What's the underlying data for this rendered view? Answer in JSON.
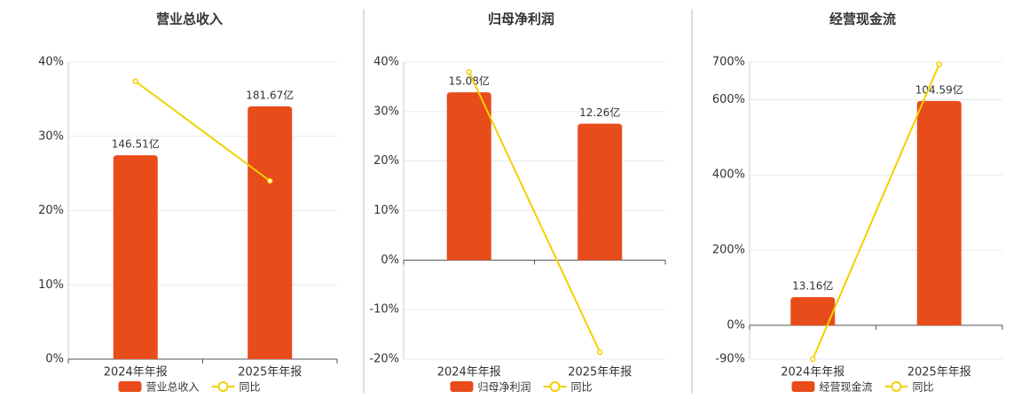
{
  "chart_data": [
    {
      "type": "combo",
      "title": "营业总收入",
      "categories": [
        "2024年年报",
        "2025年年报"
      ],
      "series": [
        {
          "name": "营业总收入",
          "type": "bar",
          "axis": "y2",
          "color": "#e84c1a",
          "values": [
            146.51,
            181.67
          ],
          "value_labels": [
            "146.51亿",
            "181.67亿"
          ]
        },
        {
          "name": "同比",
          "type": "line",
          "color": "#f2d000",
          "values": [
            37.4,
            24.0
          ]
        }
      ],
      "ylim": [
        0,
        40
      ],
      "yticks": [
        {
          "value": 0,
          "label": "0%"
        },
        {
          "value": 10,
          "label": "10%"
        },
        {
          "value": 20,
          "label": "20%"
        },
        {
          "value": 30,
          "label": "30%"
        },
        {
          "value": 40,
          "label": "40%"
        }
      ],
      "y2lim": [
        0,
        213.5
      ],
      "grid": true
    },
    {
      "type": "combo",
      "title": "归母净利润",
      "categories": [
        "2024年年报",
        "2025年年报"
      ],
      "series": [
        {
          "name": "归母净利润",
          "type": "bar",
          "axis": "y2",
          "color": "#e84c1a",
          "values": [
            15.08,
            12.26
          ],
          "value_labels": [
            "15.08亿",
            "12.26亿"
          ]
        },
        {
          "name": "同比",
          "type": "line",
          "color": "#f2d000",
          "values": [
            38.0,
            -18.6
          ]
        }
      ],
      "ylim": [
        -20,
        40
      ],
      "yticks": [
        {
          "value": -20,
          "label": "-20%"
        },
        {
          "value": -10,
          "label": "-10%"
        },
        {
          "value": 0,
          "label": "0%"
        },
        {
          "value": 10,
          "label": "10%"
        },
        {
          "value": 20,
          "label": "20%"
        },
        {
          "value": 30,
          "label": "30%"
        },
        {
          "value": 40,
          "label": "40%"
        }
      ],
      "y2lim": [
        -8.9,
        17.8
      ],
      "grid": true
    },
    {
      "type": "combo",
      "title": "经营现金流",
      "categories": [
        "2024年年报",
        "2025年年报"
      ],
      "series": [
        {
          "name": "经营现金流",
          "type": "bar",
          "axis": "y2",
          "color": "#e84c1a",
          "values": [
            13.16,
            104.59
          ],
          "value_labels": [
            "13.16亿",
            "104.59亿"
          ]
        },
        {
          "name": "同比",
          "type": "line",
          "color": "#f2d000",
          "values": [
            -90,
            694
          ]
        }
      ],
      "ylim": [
        -90,
        700
      ],
      "yticks": [
        {
          "value": -90,
          "label": "-90%"
        },
        {
          "value": 0,
          "label": "0%"
        },
        {
          "value": 200,
          "label": "200%"
        },
        {
          "value": 400,
          "label": "400%"
        },
        {
          "value": 600,
          "label": "600%"
        },
        {
          "value": 700,
          "label": "700%"
        }
      ],
      "y2lim": [
        -15.7,
        122.7
      ],
      "grid": true
    }
  ]
}
